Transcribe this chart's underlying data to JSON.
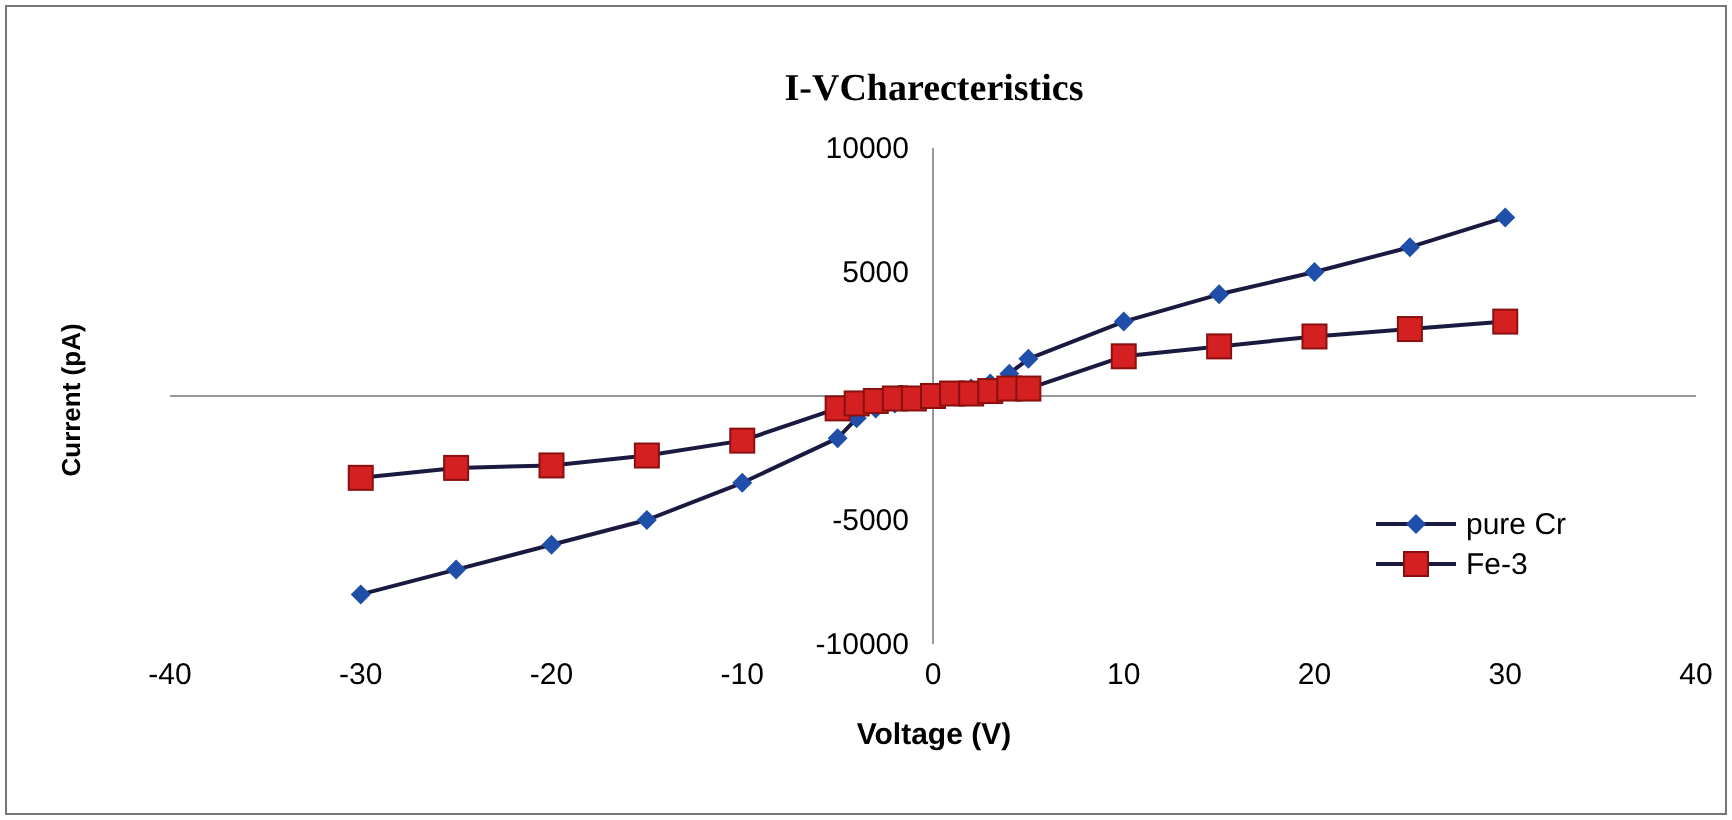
{
  "chart_data": {
    "type": "line",
    "title": "I-VCharecteristics",
    "xlabel": "Voltage (V)",
    "ylabel": "Current (pA)",
    "xlim": [
      -40,
      40
    ],
    "xticks": [
      -40,
      -30,
      -20,
      -10,
      0,
      10,
      20,
      30,
      40
    ],
    "ylim": [
      -10000,
      10000
    ],
    "yticks": [
      -10000,
      -5000,
      0,
      5000,
      10000
    ],
    "legend": "right",
    "line_style": "solid",
    "series": [
      {
        "name": "pure Cr",
        "color": "#1f4fa8",
        "marker": "diamond",
        "x": [
          -30,
          -25,
          -20,
          -15,
          -10,
          -5,
          -4,
          -3,
          -2,
          -1,
          0,
          1,
          2,
          3,
          4,
          5,
          10,
          15,
          20,
          25,
          30
        ],
        "values": [
          -8000,
          -7000,
          -6000,
          -5000,
          -3500,
          -1700,
          -900,
          -500,
          -300,
          -100,
          0,
          100,
          300,
          500,
          900,
          1500,
          3000,
          4100,
          5000,
          6000,
          7200
        ]
      },
      {
        "name": "Fe-3",
        "color": "#d42020",
        "marker": "square",
        "x": [
          -30,
          -25,
          -20,
          -15,
          -10,
          -5,
          -4,
          -3,
          -2,
          -1,
          0,
          1,
          2,
          3,
          4,
          5,
          10,
          15,
          20,
          25,
          30
        ],
        "values": [
          -3300,
          -2900,
          -2800,
          -2400,
          -1800,
          -500,
          -300,
          -200,
          -100,
          -100,
          0,
          100,
          100,
          200,
          300,
          300,
          1600,
          2000,
          2400,
          2700,
          3000
        ]
      }
    ]
  }
}
